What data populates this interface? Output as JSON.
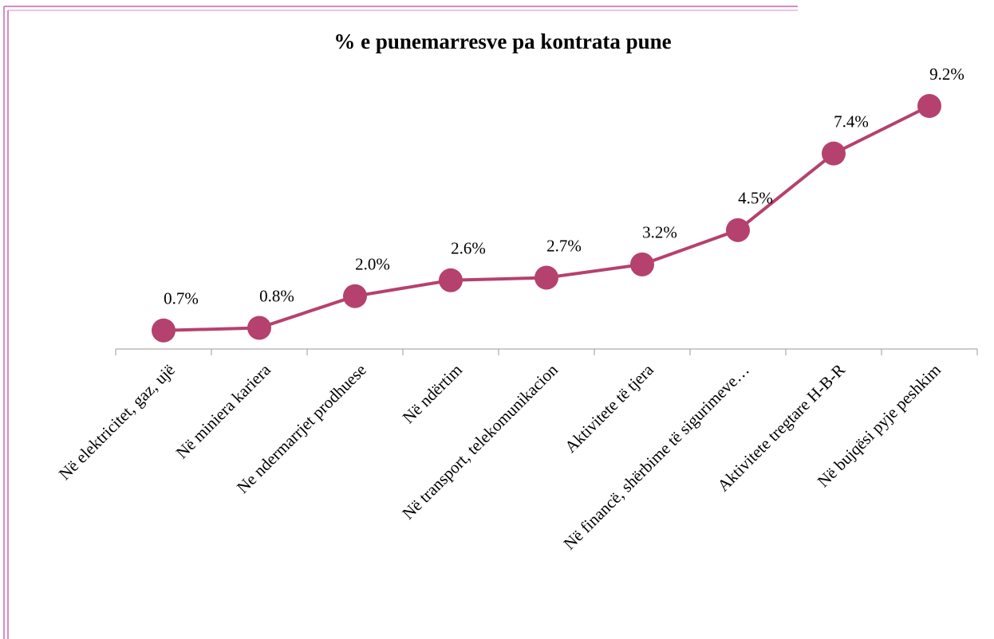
{
  "chart_data": {
    "type": "line",
    "title": "% e punemarresve pa kontrata pune",
    "categories": [
      "Në elektricitet, gaz, ujë",
      "Në miniera kariera",
      "Ne ndermarrjet prodhuese",
      "Në ndërtim",
      "Në transport, telekomunikacion",
      "Aktivitete të tjera",
      "Në financë, shërbime të sigurimeve…",
      "Aktivitete tregtare H-B-R",
      "Në bujqësi pyje peshkim"
    ],
    "values": [
      0.7,
      0.8,
      2.0,
      2.6,
      2.7,
      3.2,
      4.5,
      7.4,
      9.2
    ],
    "value_labels": [
      "0.7%",
      "0.8%",
      "2.0%",
      "2.6%",
      "2.7%",
      "3.2%",
      "4.5%",
      "7.4%",
      "9.2%"
    ],
    "color": "#b5416e"
  }
}
